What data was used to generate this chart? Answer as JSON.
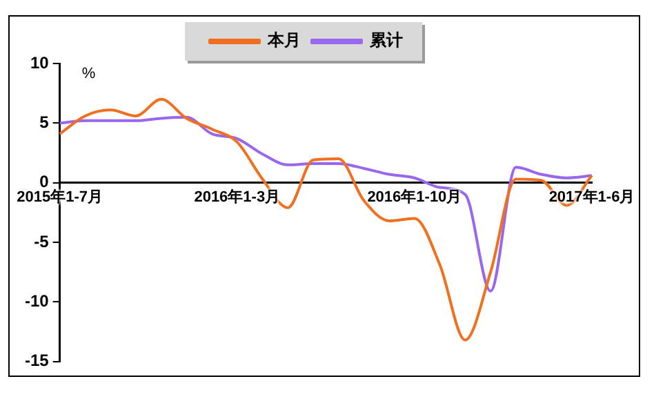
{
  "chart_data": {
    "type": "line",
    "ylabel": "%",
    "categories": [
      "2015年1-7月",
      null,
      null,
      null,
      null,
      null,
      null,
      "2016年1-3月",
      null,
      null,
      null,
      null,
      null,
      null,
      "2016年1-10月",
      null,
      null,
      null,
      null,
      null,
      null,
      "2017年1-6月"
    ],
    "series": [
      {
        "name": "本月",
        "color": "#f07020",
        "values": [
          4.1,
          5.6,
          6.1,
          5.6,
          7.0,
          5.4,
          4.5,
          3.4,
          0.3,
          -2.1,
          1.9,
          2.0,
          -1.5,
          -3.2,
          -3.0,
          -6.9,
          -13.2,
          -7.5,
          0.3,
          0.2,
          -1.9,
          0.6
        ]
      },
      {
        "name": "累计",
        "color": "#9966ee",
        "values": [
          5.0,
          5.2,
          5.2,
          5.2,
          5.4,
          5.5,
          4.1,
          3.7,
          2.4,
          1.5,
          1.6,
          1.6,
          1.2,
          0.7,
          0.4,
          -0.4,
          -1.0,
          -9.1,
          1.3,
          0.7,
          0.4,
          0.6
        ]
      }
    ],
    "ylim": [
      -15,
      10
    ],
    "yticks": [
      -15,
      -10,
      -5,
      0,
      5,
      10
    ],
    "grid": false,
    "legend": "top",
    "marker": "none",
    "line_style": "solid"
  }
}
